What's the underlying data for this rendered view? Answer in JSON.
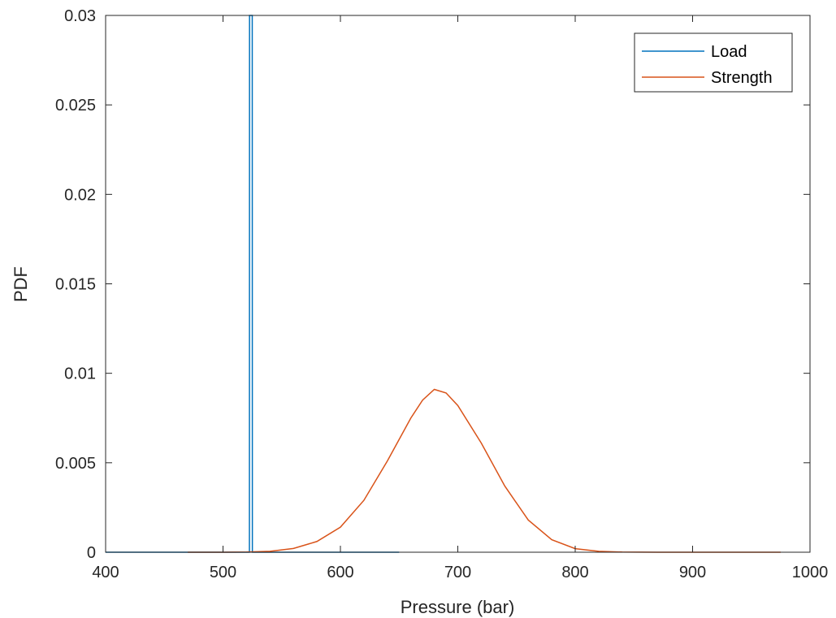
{
  "chart_data": {
    "type": "line",
    "xlabel": "Pressure (bar)",
    "ylabel": "PDF",
    "xlim": [
      400,
      1000
    ],
    "ylim": [
      0,
      0.03
    ],
    "x_ticks": [
      400,
      500,
      600,
      700,
      800,
      900,
      1000
    ],
    "x_tick_labels": [
      "400",
      "500",
      "600",
      "700",
      "800",
      "900",
      "1000"
    ],
    "y_ticks": [
      0,
      0.005,
      0.01,
      0.015,
      0.02,
      0.025,
      0.03
    ],
    "y_tick_labels": [
      "0",
      "0.005",
      "0.01",
      "0.015",
      "0.02",
      "0.025",
      "0.03"
    ],
    "grid": false,
    "legend_position": "top-right",
    "series": [
      {
        "name": "Load",
        "color": "#0072BD",
        "x": [
          400,
          522.5,
          522.6,
          524.9,
          525,
          650
        ],
        "y": [
          0,
          0,
          0.03,
          0.03,
          0,
          0
        ]
      },
      {
        "name": "Strength",
        "color": "#D95319",
        "x": [
          470,
          500,
          520,
          540,
          560,
          580,
          600,
          620,
          640,
          660,
          670,
          680,
          690,
          700,
          720,
          740,
          760,
          780,
          800,
          820,
          840,
          870,
          900,
          940,
          975
        ],
        "y": [
          0,
          0,
          1e-05,
          5e-05,
          0.00021,
          0.0006,
          0.0014,
          0.0029,
          0.0051,
          0.0075,
          0.0085,
          0.0091,
          0.0089,
          0.0082,
          0.0061,
          0.0037,
          0.0018,
          0.0007,
          0.0002,
          5e-05,
          1e-05,
          0,
          0,
          0,
          0
        ]
      }
    ]
  }
}
